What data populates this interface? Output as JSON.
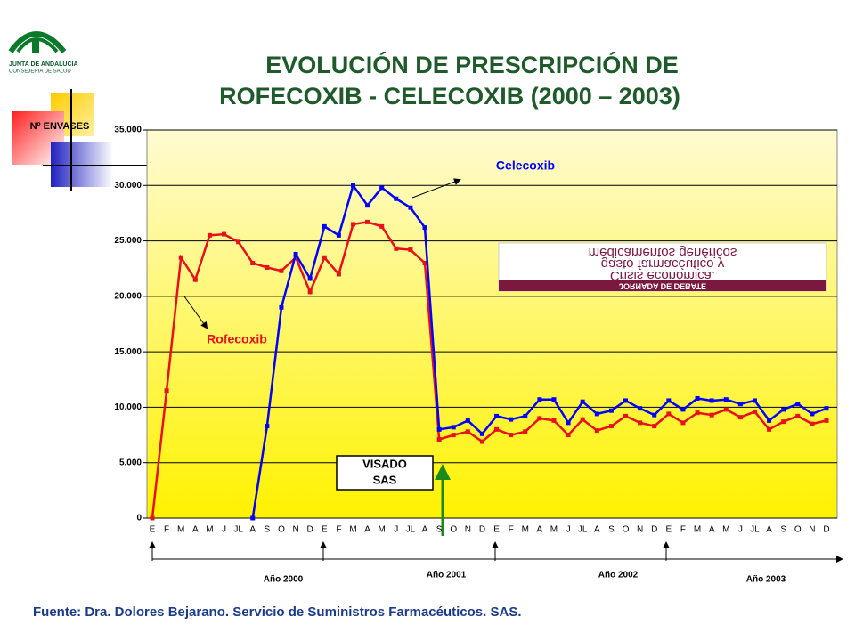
{
  "logo": {
    "lines": [
      "JUNTA DE ANDALUCIA",
      "CONSEJERIA DE SALUD"
    ]
  },
  "chart_data": {
    "type": "line",
    "title": [
      "EVOLUCIÓN DE PRESCRIPCIÓN DE",
      "ROFECOXIB - CELECOXIB  (2000 – 2003)"
    ],
    "y_label": "Nº ENVASES",
    "categories": [
      "E",
      "F",
      "M",
      "A",
      "M",
      "J",
      "JL",
      "A",
      "S",
      "O",
      "N",
      "D",
      "E",
      "F",
      "M",
      "A",
      "M",
      "J",
      "JL",
      "A",
      "S",
      "O",
      "N",
      "D",
      "E",
      "F",
      "M",
      "A",
      "M",
      "J",
      "JL",
      "A",
      "S",
      "O",
      "N",
      "D",
      "E",
      "F",
      "M",
      "A",
      "M",
      "J",
      "JL",
      "A",
      "S",
      "O",
      "N",
      "D"
    ],
    "year_labels": [
      "Año 2000",
      "Año 2001",
      "Año 2002",
      "Año 2003"
    ],
    "series": [
      {
        "name": "Rofecoxib",
        "color": "#e8101c",
        "values": [
          0,
          11500,
          23500,
          21500,
          25500,
          25600,
          24900,
          23000,
          22600,
          22300,
          23500,
          20400,
          23500,
          22000,
          26500,
          26700,
          26300,
          24300,
          24200,
          23000,
          7100,
          7500,
          7800,
          6900,
          8000,
          7500,
          7800,
          9000,
          8800,
          7500,
          8900,
          7900,
          8300,
          9200,
          8600,
          8300,
          9400,
          8600,
          9500,
          9300,
          9800,
          9100,
          9600,
          8000,
          8700,
          9200,
          8500,
          8800
        ]
      },
      {
        "name": "Celecoxib",
        "color": "#0000ff",
        "values": [
          null,
          null,
          null,
          null,
          null,
          null,
          null,
          0,
          8300,
          19000,
          23800,
          21600,
          26300,
          25500,
          30000,
          28200,
          29800,
          28800,
          28000,
          26200,
          8000,
          8200,
          8800,
          7600,
          9200,
          8900,
          9200,
          10700,
          10700,
          8600,
          10500,
          9400,
          9700,
          10600,
          9900,
          9300,
          10600,
          9800,
          10800,
          10600,
          10700,
          10300,
          10600,
          8800,
          9800,
          10300,
          9400,
          9900
        ]
      }
    ],
    "ylim": [
      0,
      35000
    ],
    "yticks": [
      0,
      {
        "value": 5000,
        "label": "5.000"
      },
      {
        "value": 10000,
        "label": "10.000"
      },
      {
        "value": 15000,
        "label": "15.000"
      },
      {
        "value": 20000,
        "label": "20.000"
      },
      {
        "value": 25000,
        "label": "25.000"
      },
      {
        "value": 30000,
        "label": "30.000"
      },
      {
        "value": 35000,
        "label": "35.000"
      }
    ],
    "grid": true,
    "annotations": {
      "visado": [
        "VISADO",
        "SAS"
      ],
      "inset": [
        "medicamentos genéricos",
        "gasto farmacéutico y",
        "Crisis económica.",
        "JORNADA DE DEBATE"
      ]
    }
  },
  "footer": "Fuente: Dra. Dolores Bejarano. Servicio de Suministros Farmacéuticos. SAS."
}
